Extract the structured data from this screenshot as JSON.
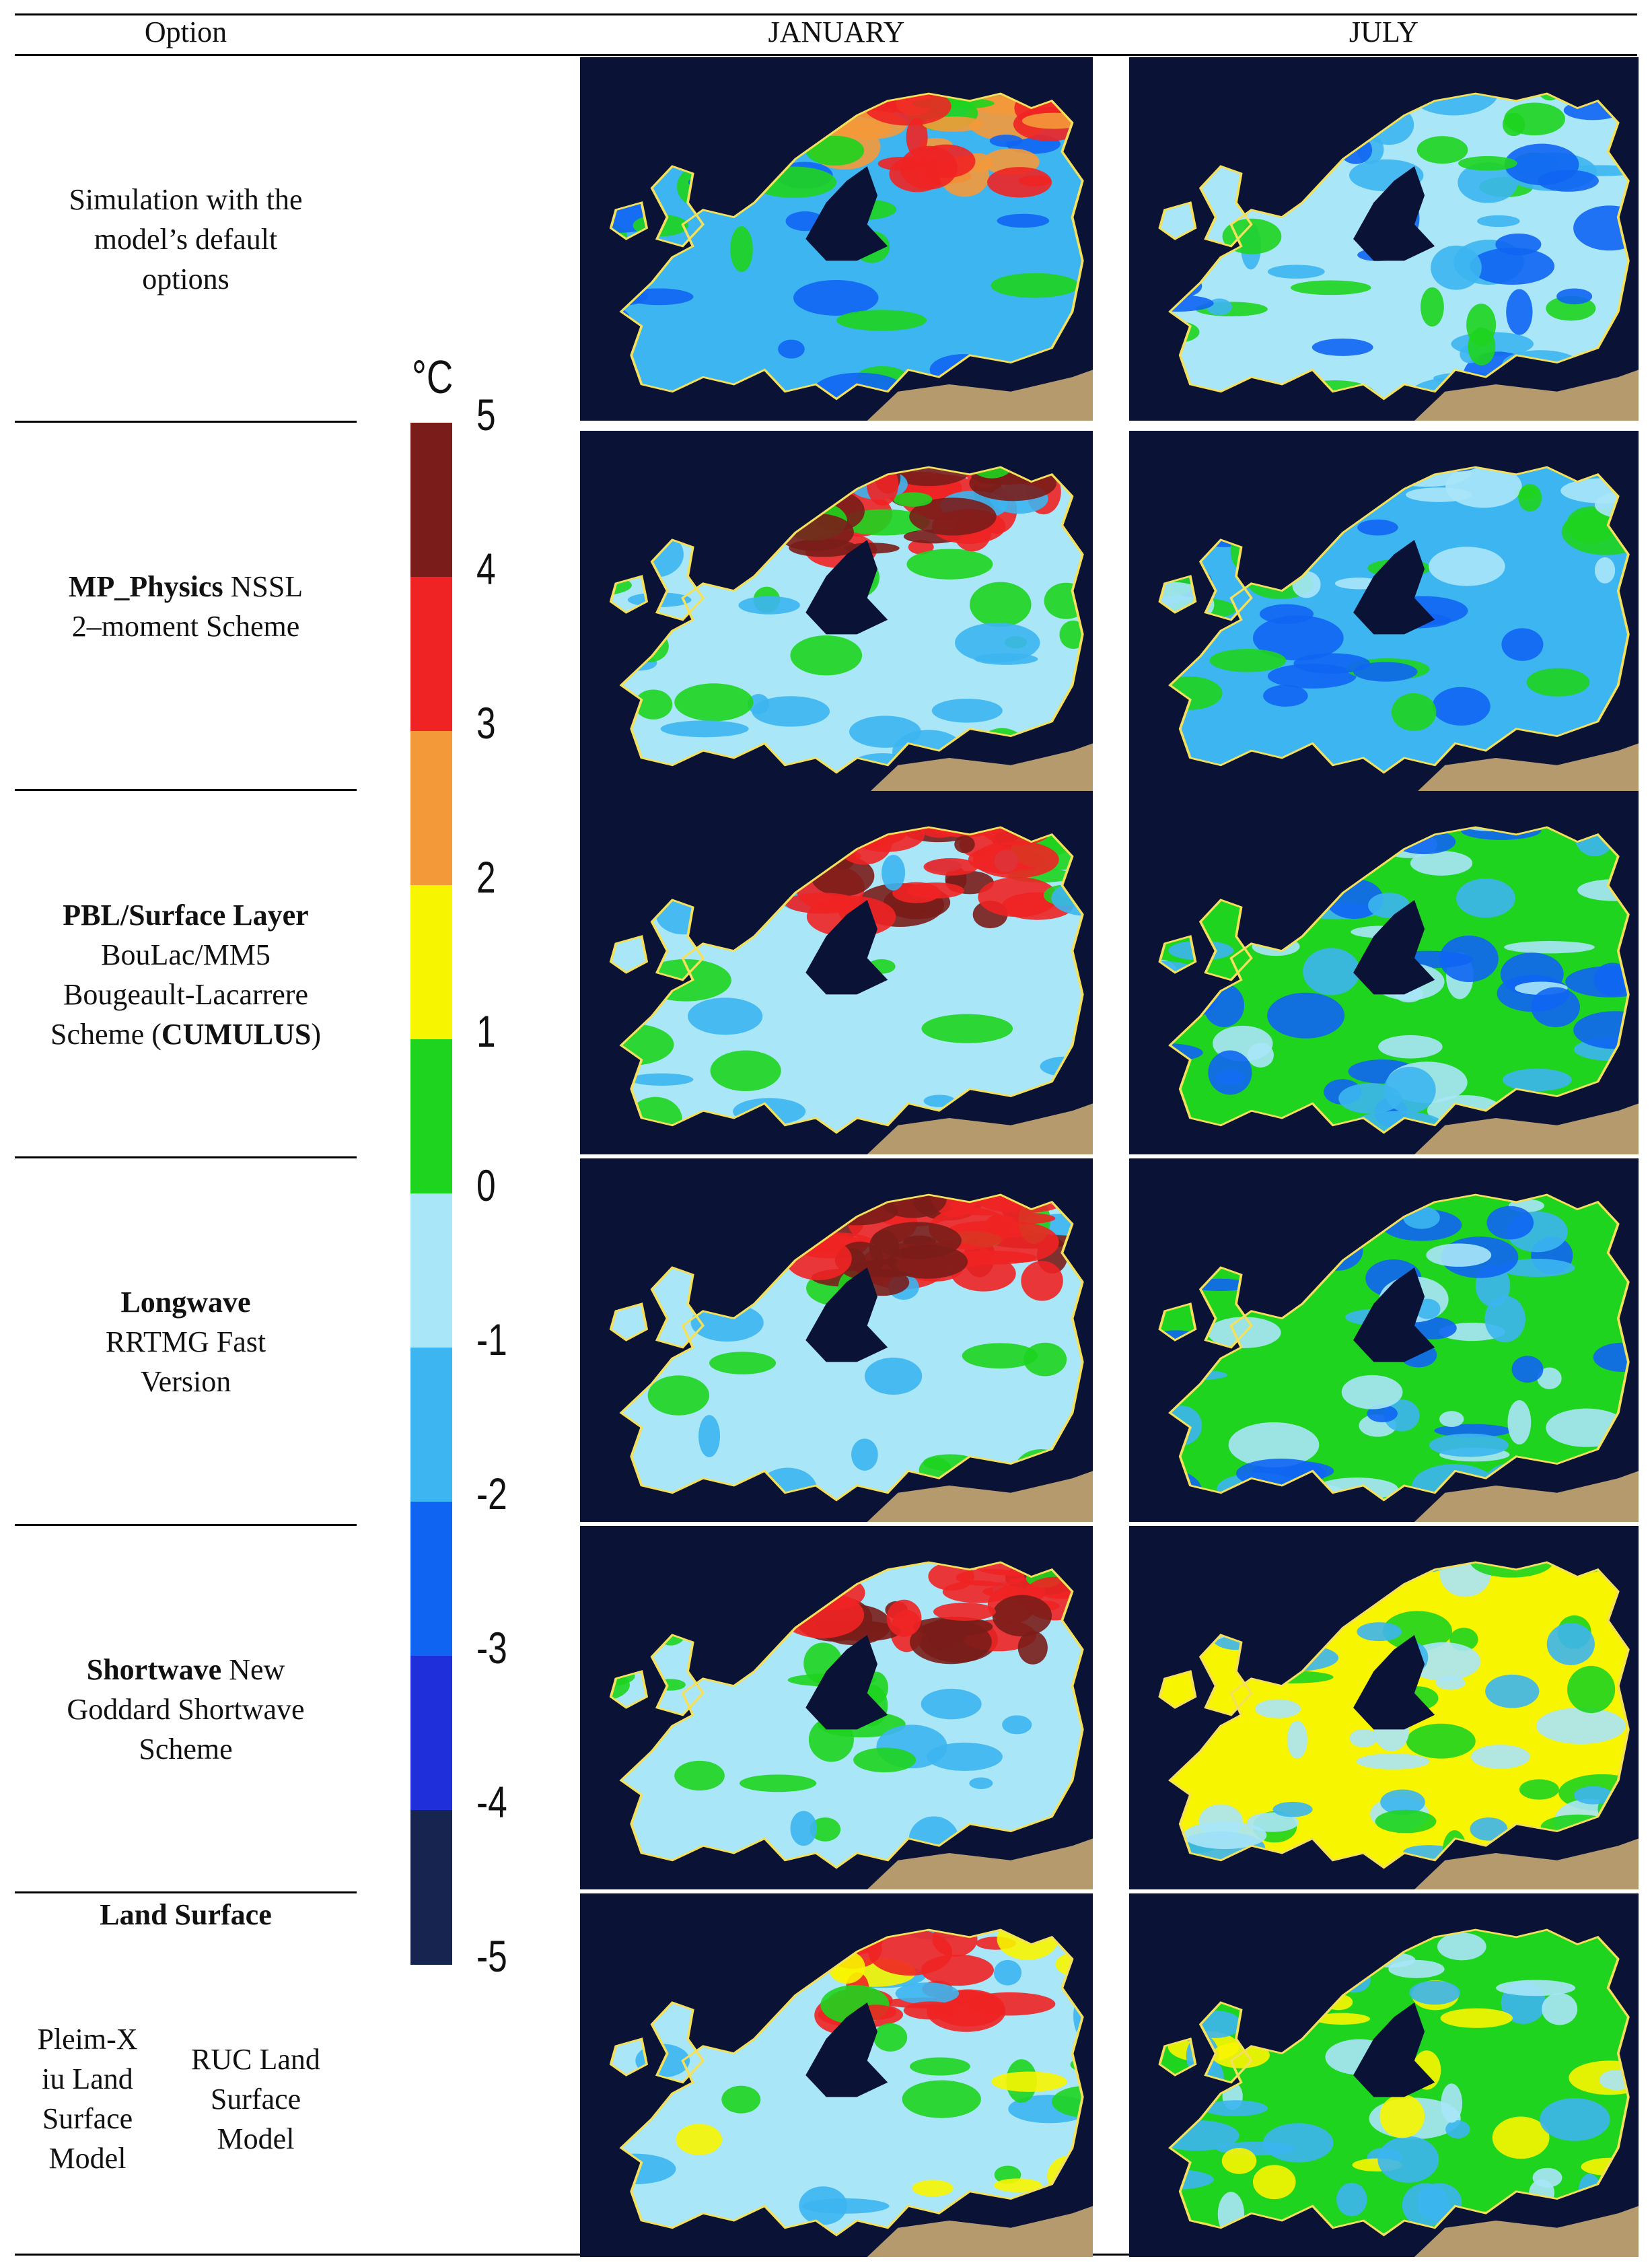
{
  "header": {
    "option": "Option",
    "january": "JANUARY",
    "july": "JULY"
  },
  "colorbar": {
    "unit": "°C",
    "ticks": [
      "5",
      "4",
      "3",
      "2",
      "1",
      "0",
      "-1",
      "-2",
      "-3",
      "-4",
      "-5"
    ],
    "colors": [
      "#7a1d1a",
      "#ef2323",
      "#f4993a",
      "#f8f500",
      "#1ed41e",
      "#a9e6f8",
      "#3cb5f0",
      "#0f65f2",
      "#1f2fd9",
      "#16244f"
    ]
  },
  "rows": [
    {
      "prefix": "",
      "bold": "",
      "rest": "Simulation with the model’s default options",
      "extra": ""
    },
    {
      "prefix": "",
      "bold": "MP_Physics",
      "rest": " NSSL 2–moment Scheme",
      "extra": ""
    },
    {
      "prefix": "",
      "bold": "PBL/Surface Layer",
      "rest": " BouLac/MM5 Bougeault-Lacarrere Scheme (",
      "extra": "CUMULUS"
    },
    {
      "prefix": "",
      "bold": "Longwave",
      "rest": " RRTMG Fast Version",
      "extra": ""
    },
    {
      "prefix": "",
      "bold": "Shortwave",
      "rest": " New Goddard Shortwave Scheme",
      "extra": ""
    }
  ],
  "land_surface": {
    "title": "Land Surface",
    "left": "Pleim-X iu Land Surface Model",
    "right": "RUC Land Surface Model"
  },
  "maps": [
    {
      "month": "January",
      "option": "default",
      "palette": [
        "#3cb5f0",
        "#1ed41e",
        "#ef2323",
        "#f4993a",
        "#0f65f2"
      ]
    },
    {
      "month": "July",
      "option": "default",
      "palette": [
        "#a9e6f8",
        "#3cb5f0",
        "#0f65f2",
        "#1ed41e"
      ]
    },
    {
      "month": "January",
      "option": "mp_physics",
      "palette": [
        "#a9e6f8",
        "#3cb5f0",
        "#ef2323",
        "#7a1d1a",
        "#1ed41e"
      ]
    },
    {
      "month": "July",
      "option": "mp_physics",
      "palette": [
        "#3cb5f0",
        "#1ed41e",
        "#0f65f2",
        "#a9e6f8"
      ]
    },
    {
      "month": "January",
      "option": "pbl",
      "palette": [
        "#a9e6f8",
        "#3cb5f0",
        "#ef2323",
        "#7a1d1a",
        "#1ed41e"
      ]
    },
    {
      "month": "July",
      "option": "pbl",
      "palette": [
        "#1ed41e",
        "#3cb5f0",
        "#0f65f2",
        "#a9e6f8"
      ]
    },
    {
      "month": "January",
      "option": "longwave",
      "palette": [
        "#a9e6f8",
        "#3cb5f0",
        "#ef2323",
        "#7a1d1a",
        "#1ed41e"
      ]
    },
    {
      "month": "July",
      "option": "longwave",
      "palette": [
        "#1ed41e",
        "#3cb5f0",
        "#a9e6f8",
        "#0f65f2"
      ]
    },
    {
      "month": "January",
      "option": "shortwave",
      "palette": [
        "#a9e6f8",
        "#1ed41e",
        "#ef2323",
        "#7a1d1a",
        "#3cb5f0"
      ]
    },
    {
      "month": "July",
      "option": "shortwave",
      "palette": [
        "#f8f500",
        "#1ed41e",
        "#3cb5f0",
        "#a9e6f8"
      ]
    },
    {
      "month": "January",
      "option": "land",
      "palette": [
        "#a9e6f8",
        "#1ed41e",
        "#ef2323",
        "#f8f500",
        "#3cb5f0"
      ]
    },
    {
      "month": "July",
      "option": "land",
      "palette": [
        "#1ed41e",
        "#f8f500",
        "#3cb5f0",
        "#a9e6f8"
      ]
    }
  ]
}
